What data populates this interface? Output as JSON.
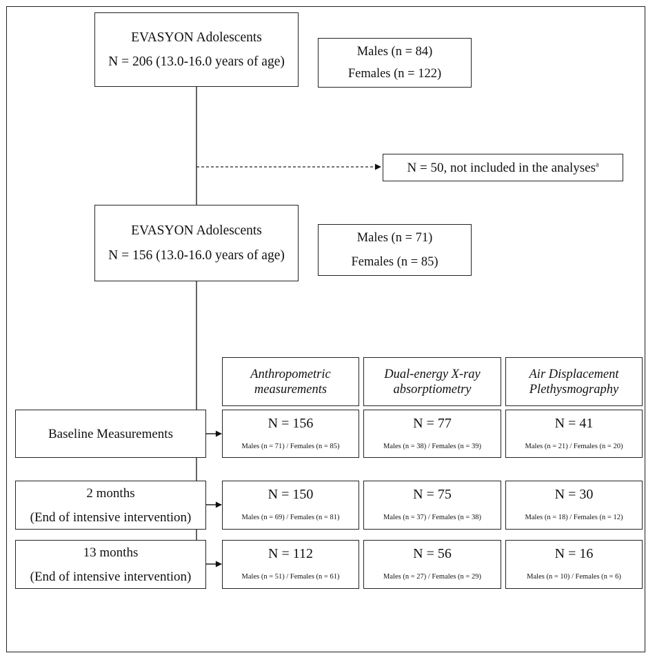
{
  "cohort_initial": {
    "title": "EVASYON Adolescents",
    "subtitle": "N = 206 (13.0-16.0 years of age)"
  },
  "sex_initial": {
    "males": "Males (n = 84)",
    "females": "Females (n = 122)"
  },
  "excluded": {
    "text": "N = 50, not included in the analyses",
    "footnote": "a"
  },
  "cohort_final": {
    "title": "EVASYON Adolescents",
    "subtitle": "N = 156 (13.0-16.0 years of age)"
  },
  "sex_final": {
    "males": "Males (n = 71)",
    "females": "Females (n = 85)"
  },
  "methods": [
    {
      "line1": "Anthropometric",
      "line2": "measurements"
    },
    {
      "line1": "Dual-energy X-ray",
      "line2": "absorptiometry"
    },
    {
      "line1": "Air Displacement",
      "line2": "Plethysmography"
    }
  ],
  "timepoints": [
    {
      "line1": "Baseline Measurements",
      "line2": "",
      "cells": [
        {
          "n": "N = 156",
          "sub": "Males (n = 71) / Females (n = 85)"
        },
        {
          "n": "N = 77",
          "sub": "Males (n = 38) / Females (n = 39)"
        },
        {
          "n": "N = 41",
          "sub": "Males (n = 21) / Females (n = 20)"
        }
      ]
    },
    {
      "line1": "2 months",
      "line2": "(End of intensive intervention)",
      "cells": [
        {
          "n": "N = 150",
          "sub": "Males (n = 69) / Females (n = 81)"
        },
        {
          "n": "N = 75",
          "sub": "Males (n = 37) / Females (n = 38)"
        },
        {
          "n": "N = 30",
          "sub": "Males (n = 18) / Females (n = 12)"
        }
      ]
    },
    {
      "line1": "13 months",
      "line2": "(End of intensive intervention)",
      "cells": [
        {
          "n": "N = 112",
          "sub": "Males (n = 51) / Females (n = 61)"
        },
        {
          "n": "N = 56",
          "sub": "Males (n = 27) / Females (n = 29)"
        },
        {
          "n": "N = 16",
          "sub": "Males (n = 10) / Females (n = 6)"
        }
      ]
    }
  ]
}
